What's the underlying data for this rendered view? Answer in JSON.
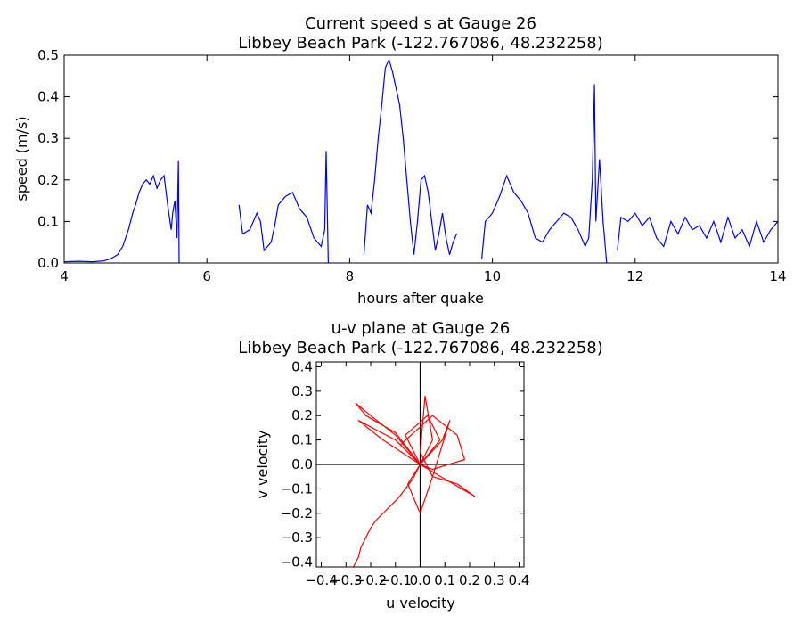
{
  "chart_data": [
    {
      "type": "line",
      "title": "Current speed s at Gauge 26",
      "subtitle": "Libbey Beach Park  (-122.767086, 48.232258)",
      "xlabel": "hours after quake",
      "ylabel": "speed (m/s)",
      "xlim": [
        4,
        14
      ],
      "ylim": [
        0,
        0.5
      ],
      "xticks": [
        "4",
        "6",
        "8",
        "10",
        "12",
        "14"
      ],
      "yticks": [
        "0.0",
        "0.1",
        "0.2",
        "0.3",
        "0.4",
        "0.5"
      ],
      "grid": false,
      "color": "#0000ff",
      "series": [
        {
          "segments": [
            [
              [
                4.0,
                0.003
              ],
              [
                4.2,
                0.004
              ],
              [
                4.4,
                0.003
              ],
              [
                4.55,
                0.005
              ],
              [
                4.65,
                0.01
              ],
              [
                4.75,
                0.02
              ],
              [
                4.82,
                0.04
              ],
              [
                4.9,
                0.08
              ],
              [
                4.96,
                0.12
              ],
              [
                5.0,
                0.14
              ],
              [
                5.05,
                0.17
              ],
              [
                5.1,
                0.19
              ],
              [
                5.15,
                0.2
              ],
              [
                5.2,
                0.19
              ],
              [
                5.25,
                0.21
              ],
              [
                5.3,
                0.18
              ],
              [
                5.35,
                0.2
              ],
              [
                5.4,
                0.21
              ],
              [
                5.45,
                0.14
              ],
              [
                5.5,
                0.08
              ],
              [
                5.52,
                0.12
              ],
              [
                5.55,
                0.15
              ],
              [
                5.58,
                0.06
              ],
              [
                5.6,
                0.245
              ],
              [
                5.61,
                0.0
              ]
            ],
            [
              [
                6.45,
                0.14
              ],
              [
                6.5,
                0.07
              ],
              [
                6.6,
                0.08
              ],
              [
                6.7,
                0.12
              ],
              [
                6.75,
                0.1
              ],
              [
                6.8,
                0.03
              ],
              [
                6.9,
                0.05
              ],
              [
                6.95,
                0.09
              ],
              [
                7.0,
                0.14
              ],
              [
                7.1,
                0.16
              ],
              [
                7.2,
                0.17
              ],
              [
                7.3,
                0.13
              ],
              [
                7.4,
                0.11
              ],
              [
                7.5,
                0.06
              ],
              [
                7.6,
                0.04
              ],
              [
                7.65,
                0.08
              ],
              [
                7.67,
                0.27
              ],
              [
                7.7,
                0.0
              ]
            ],
            [
              [
                8.2,
                0.02
              ],
              [
                8.25,
                0.14
              ],
              [
                8.3,
                0.12
              ],
              [
                8.35,
                0.2
              ],
              [
                8.4,
                0.3
              ],
              [
                8.45,
                0.38
              ],
              [
                8.5,
                0.47
              ],
              [
                8.55,
                0.49
              ],
              [
                8.6,
                0.46
              ],
              [
                8.65,
                0.42
              ],
              [
                8.7,
                0.38
              ],
              [
                8.75,
                0.3
              ],
              [
                8.8,
                0.2
              ],
              [
                8.85,
                0.1
              ],
              [
                8.9,
                0.02
              ],
              [
                8.95,
                0.1
              ],
              [
                9.0,
                0.2
              ],
              [
                9.05,
                0.21
              ],
              [
                9.1,
                0.17
              ],
              [
                9.15,
                0.1
              ],
              [
                9.2,
                0.03
              ],
              [
                9.25,
                0.07
              ],
              [
                9.3,
                0.12
              ],
              [
                9.35,
                0.06
              ],
              [
                9.4,
                0.02
              ],
              [
                9.45,
                0.05
              ],
              [
                9.5,
                0.07
              ]
            ],
            [
              [
                9.85,
                0.01
              ],
              [
                9.9,
                0.1
              ],
              [
                10.0,
                0.12
              ],
              [
                10.1,
                0.16
              ],
              [
                10.2,
                0.21
              ],
              [
                10.3,
                0.17
              ],
              [
                10.4,
                0.15
              ],
              [
                10.5,
                0.12
              ],
              [
                10.6,
                0.06
              ],
              [
                10.7,
                0.05
              ],
              [
                10.8,
                0.08
              ],
              [
                10.9,
                0.1
              ],
              [
                11.0,
                0.12
              ],
              [
                11.1,
                0.11
              ],
              [
                11.2,
                0.08
              ],
              [
                11.3,
                0.04
              ],
              [
                11.35,
                0.06
              ],
              [
                11.4,
                0.2
              ],
              [
                11.43,
                0.43
              ],
              [
                11.45,
                0.1
              ],
              [
                11.5,
                0.25
              ],
              [
                11.55,
                0.1
              ],
              [
                11.6,
                0.0
              ]
            ],
            [
              [
                11.75,
                0.03
              ],
              [
                11.8,
                0.11
              ],
              [
                11.9,
                0.1
              ],
              [
                12.0,
                0.12
              ],
              [
                12.1,
                0.09
              ],
              [
                12.2,
                0.11
              ],
              [
                12.3,
                0.06
              ],
              [
                12.4,
                0.04
              ],
              [
                12.5,
                0.1
              ],
              [
                12.6,
                0.07
              ],
              [
                12.7,
                0.11
              ],
              [
                12.8,
                0.08
              ],
              [
                12.9,
                0.09
              ],
              [
                13.0,
                0.06
              ],
              [
                13.1,
                0.1
              ],
              [
                13.2,
                0.05
              ],
              [
                13.3,
                0.11
              ],
              [
                13.4,
                0.06
              ],
              [
                13.5,
                0.08
              ],
              [
                13.6,
                0.04
              ],
              [
                13.7,
                0.1
              ],
              [
                13.8,
                0.05
              ],
              [
                13.9,
                0.08
              ],
              [
                14.0,
                0.1
              ]
            ]
          ]
        }
      ]
    },
    {
      "type": "line",
      "title": "u-v plane at Gauge 26",
      "subtitle": "Libbey Beach Park  (-122.767086, 48.232258)",
      "xlabel": "u velocity",
      "ylabel": "v velocity",
      "xlim": [
        -0.42,
        0.42
      ],
      "ylim": [
        -0.42,
        0.42
      ],
      "xticks": [
        "−0.4",
        "−0.3",
        "−0.2",
        "−0.1",
        "0.0",
        "0.1",
        "0.2",
        "0.3",
        "0.4"
      ],
      "yticks": [
        "−0.4",
        "−0.3",
        "−0.2",
        "−0.1",
        "0.0",
        "0.1",
        "0.2",
        "0.3",
        "0.4"
      ],
      "grid": false,
      "color": "#ff0000",
      "series": [
        {
          "points": [
            [
              -0.27,
              -0.42
            ],
            [
              -0.25,
              -0.38
            ],
            [
              -0.24,
              -0.34
            ],
            [
              -0.22,
              -0.3
            ],
            [
              -0.2,
              -0.26
            ],
            [
              -0.18,
              -0.23
            ],
            [
              -0.15,
              -0.2
            ],
            [
              -0.12,
              -0.17
            ],
            [
              -0.09,
              -0.14
            ],
            [
              -0.06,
              -0.1
            ],
            [
              -0.03,
              -0.06
            ],
            [
              0.0,
              0.0
            ],
            [
              -0.1,
              0.12
            ],
            [
              -0.2,
              0.2
            ],
            [
              -0.26,
              0.25
            ],
            [
              -0.22,
              0.2
            ],
            [
              -0.1,
              0.13
            ],
            [
              0.0,
              0.0
            ],
            [
              -0.15,
              0.1
            ],
            [
              -0.25,
              0.18
            ],
            [
              -0.1,
              0.1
            ],
            [
              0.0,
              0.0
            ],
            [
              0.05,
              0.1
            ],
            [
              0.02,
              0.28
            ],
            [
              0.0,
              0.05
            ],
            [
              0.05,
              -0.05
            ],
            [
              0.15,
              -0.08
            ],
            [
              0.22,
              -0.13
            ],
            [
              0.1,
              -0.06
            ],
            [
              0.0,
              0.0
            ],
            [
              -0.08,
              0.08
            ],
            [
              0.05,
              0.2
            ],
            [
              0.15,
              0.12
            ],
            [
              0.18,
              0.02
            ],
            [
              0.05,
              -0.02
            ],
            [
              0.0,
              0.0
            ],
            [
              -0.05,
              -0.08
            ],
            [
              0.0,
              -0.2
            ],
            [
              0.05,
              -0.05
            ],
            [
              0.12,
              0.18
            ],
            [
              0.09,
              0.1
            ],
            [
              0.0,
              0.0
            ],
            [
              -0.06,
              0.12
            ],
            [
              0.03,
              0.2
            ],
            [
              0.08,
              0.1
            ],
            [
              0.0,
              0.0
            ]
          ]
        }
      ]
    }
  ]
}
